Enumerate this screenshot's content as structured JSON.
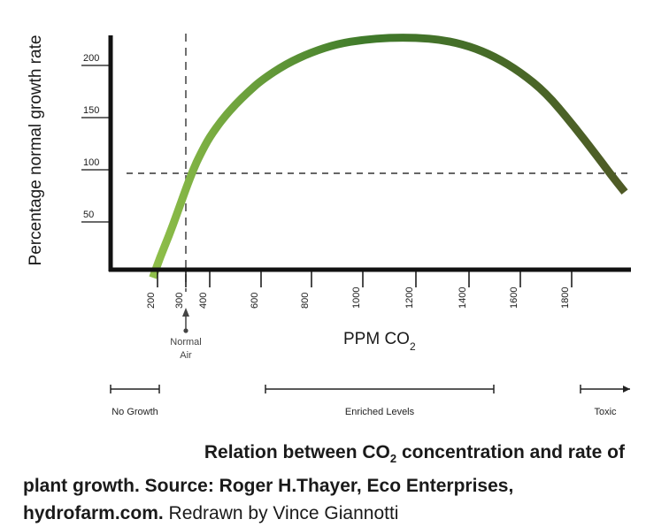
{
  "chart_data": {
    "type": "line",
    "ylabel": "Percentage normal growth rate",
    "xlabel_main": "PPM CO",
    "xlabel_sub": "2",
    "y_ticks": [
      50,
      100,
      150,
      200
    ],
    "x_ticks": [
      200,
      300,
      400,
      600,
      800,
      1000,
      1200,
      1400,
      1600,
      1800
    ],
    "xlim": [
      0,
      2050
    ],
    "ylim": [
      0,
      235
    ],
    "reference_lines": {
      "vertical_x": 300,
      "horizontal_y": 100
    },
    "series": [
      {
        "points": [
          [
            180,
            0
          ],
          [
            210,
            20
          ],
          [
            240,
            40
          ],
          [
            270,
            62
          ],
          [
            300,
            85
          ],
          [
            330,
            103
          ],
          [
            360,
            118
          ],
          [
            400,
            135
          ],
          [
            450,
            152
          ],
          [
            500,
            166
          ],
          [
            550,
            178
          ],
          [
            600,
            189
          ],
          [
            700,
            205
          ],
          [
            800,
            216
          ],
          [
            900,
            224
          ],
          [
            1000,
            228
          ],
          [
            1100,
            230
          ],
          [
            1200,
            230
          ],
          [
            1300,
            228
          ],
          [
            1400,
            222
          ],
          [
            1500,
            212
          ],
          [
            1600,
            197
          ],
          [
            1700,
            177
          ],
          [
            1800,
            148
          ],
          [
            1900,
            115
          ],
          [
            1950,
            98
          ],
          [
            2000,
            82
          ]
        ],
        "color_start": "#8fbf4a",
        "color_end": "#4f5a26"
      }
    ],
    "annotation": {
      "label_line1": "Normal",
      "label_line2": "Air",
      "x": 300
    },
    "ranges": [
      {
        "label": "No Growth",
        "from": 0,
        "to": 200,
        "style": "bracket"
      },
      {
        "label": "Enriched Levels",
        "from": 600,
        "to": 1500,
        "style": "bracket"
      },
      {
        "label": "Toxic",
        "from": 1840,
        "to": 2040,
        "style": "arrow"
      }
    ]
  },
  "caption": {
    "part1": "Relation between CO",
    "part1_sub": "2",
    "part2": " concentration and rate of",
    "part3": "plant growth.   Source: Roger H.Thayer, Eco Enterprises,",
    "part4": "hydrofarm.com.",
    "part5": " Redrawn by Vince Giannotti"
  },
  "colors": {
    "axis": "#111111",
    "text": "#1a1a1a",
    "dashed": "#333333"
  }
}
